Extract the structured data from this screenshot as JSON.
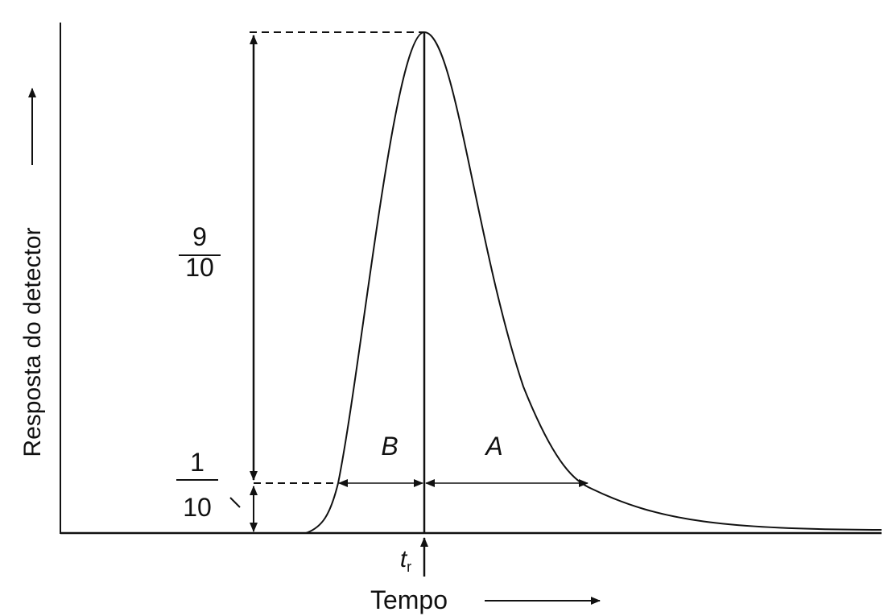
{
  "axes": {
    "y_label": "Resposta do detector",
    "x_label": "Tempo"
  },
  "fractions": [
    {
      "numerator": "9",
      "denominator": "10"
    },
    {
      "numerator": "1",
      "denominator": "10"
    }
  ],
  "segments": [
    "B",
    "A"
  ],
  "retention_time": {
    "symbol": "t",
    "subscript": "r"
  }
}
